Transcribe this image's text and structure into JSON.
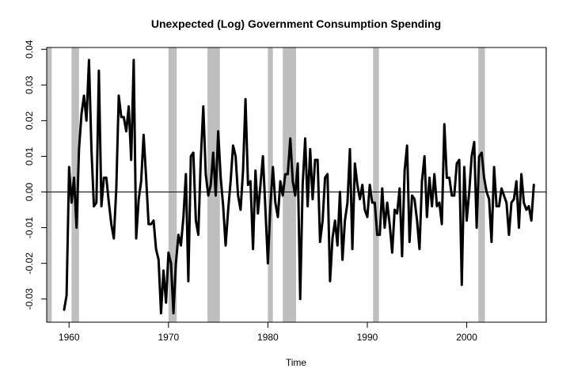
{
  "chart_data": {
    "type": "line",
    "title": "Unexpected (Log) Government Consumption Spending",
    "xlabel": "Time",
    "ylabel": "",
    "xlim": [
      1957.75,
      2008.0
    ],
    "ylim": [
      -0.0365,
      0.0405
    ],
    "x_ticks": [
      1960,
      1970,
      1980,
      1990,
      2000
    ],
    "x_tick_labels": [
      "1960",
      "1970",
      "1980",
      "1990",
      "2000"
    ],
    "y_ticks": [
      -0.03,
      -0.02,
      -0.01,
      0.0,
      0.01,
      0.02,
      0.03,
      0.04
    ],
    "y_tick_labels": [
      "-0.03",
      "-0.02",
      "-0.01",
      "0.00",
      "0.01",
      "0.02",
      "0.03",
      "0.04"
    ],
    "reference_line": {
      "y": 0.0,
      "color": "#000000"
    },
    "recession_shading": {
      "color": "#bebebe",
      "periods": [
        [
          1957.75,
          1958.25
        ],
        [
          1960.25,
          1961.0
        ],
        [
          1970.0,
          1970.83
        ],
        [
          1973.92,
          1975.17
        ],
        [
          1980.0,
          1980.5
        ],
        [
          1981.5,
          1982.83
        ],
        [
          1990.58,
          1991.17
        ],
        [
          2001.17,
          2001.83
        ],
        [
          2007.92,
          2008.0
        ]
      ]
    },
    "series": [
      {
        "color": "#000000",
        "x_start": 1959.5,
        "x_step": 0.25,
        "values": [
          -0.033,
          -0.029,
          0.007,
          -0.003,
          0.004,
          -0.01,
          0.012,
          0.022,
          0.027,
          0.02,
          0.037,
          0.012,
          -0.004,
          -0.003,
          0.034,
          -0.004,
          0.004,
          0.004,
          -0.003,
          -0.009,
          -0.013,
          0.001,
          0.027,
          0.021,
          0.021,
          0.017,
          0.024,
          0.009,
          0.037,
          -0.013,
          -0.002,
          0.003,
          0.016,
          0.004,
          -0.009,
          -0.009,
          -0.008,
          -0.016,
          -0.019,
          -0.034,
          -0.022,
          -0.031,
          -0.017,
          -0.02,
          -0.034,
          -0.02,
          -0.012,
          -0.015,
          -0.007,
          0.005,
          -0.025,
          0.01,
          0.011,
          -0.008,
          -0.012,
          0.009,
          0.024,
          0.005,
          -0.001,
          0.002,
          0.011,
          -0.001,
          0.017,
          0.004,
          -0.004,
          -0.015,
          -0.005,
          0.003,
          0.013,
          0.01,
          -0.001,
          -0.005,
          0.006,
          0.026,
          0.002,
          0.003,
          -0.016,
          0.006,
          -0.006,
          0.002,
          0.01,
          -0.005,
          -0.02,
          -0.004,
          0.007,
          -0.003,
          -0.007,
          0.003,
          -0.001,
          0.005,
          0.005,
          0.015,
          0.003,
          -0.001,
          0.008,
          -0.03,
          0.002,
          0.015,
          -0.004,
          0.012,
          -0.002,
          0.009,
          0.009,
          -0.014,
          -0.008,
          0.004,
          0.005,
          -0.025,
          -0.013,
          -0.008,
          -0.015,
          0.0,
          -0.019,
          -0.008,
          -0.003,
          0.012,
          -0.016,
          0.008,
          0.002,
          -0.002,
          0.002,
          -0.005,
          -0.007,
          0.002,
          -0.003,
          -0.003,
          -0.012,
          -0.012,
          0.001,
          -0.01,
          -0.003,
          -0.009,
          -0.017,
          -0.005,
          -0.006,
          0.001,
          -0.018,
          0.006,
          0.013,
          -0.014,
          -0.001,
          -0.002,
          -0.008,
          -0.016,
          0.003,
          0.01,
          -0.007,
          0.004,
          -0.004,
          0.005,
          -0.004,
          -0.003,
          -0.009,
          0.019,
          0.004,
          0.004,
          -0.001,
          -0.001,
          0.008,
          0.009,
          -0.026,
          0.007,
          -0.008,
          0.0,
          0.01,
          0.014,
          -0.01,
          0.01,
          0.011,
          0.004,
          0.0,
          -0.002,
          -0.014,
          0.007,
          -0.004,
          -0.004,
          0.001,
          -0.001,
          -0.003,
          -0.012,
          -0.003,
          -0.002,
          0.003,
          -0.01,
          0.005,
          -0.003,
          -0.005,
          -0.004,
          -0.008,
          0.002
        ]
      }
    ]
  }
}
